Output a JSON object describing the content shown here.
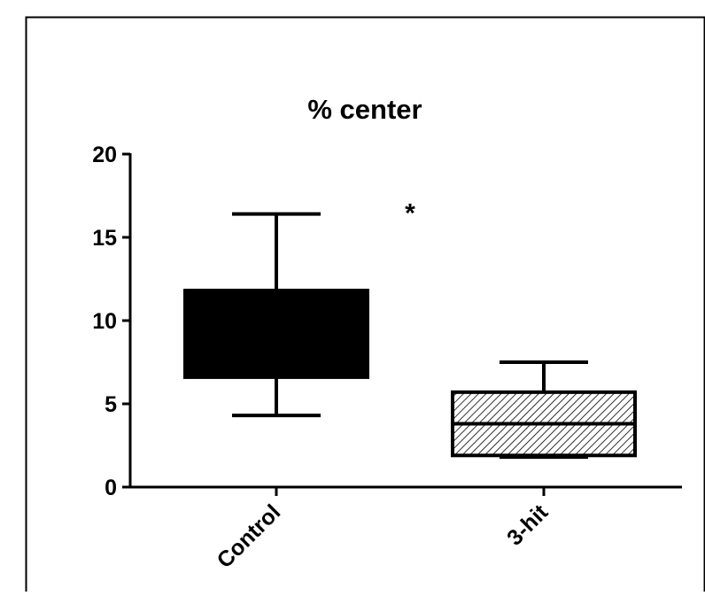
{
  "chart_data": {
    "type": "box",
    "title": "% center",
    "xlabel": "",
    "ylabel": "",
    "ylim": [
      0,
      20
    ],
    "yticks": [
      0,
      5,
      10,
      15,
      20
    ],
    "categories": [
      "Control",
      "3-hit"
    ],
    "boxes": [
      {
        "category": "Control",
        "whisker_low": 4.3,
        "q1": 6.6,
        "median": 11.8,
        "q3": 11.8,
        "whisker_high": 16.4,
        "fill": "solid-black"
      },
      {
        "category": "3-hit",
        "whisker_low": 1.8,
        "q1": 1.9,
        "median": 3.8,
        "q3": 5.7,
        "whisker_high": 7.5,
        "fill": "diagonal-hatch"
      }
    ],
    "annotations": [
      {
        "text": "*",
        "x": 1.5,
        "y": 17.1
      }
    ],
    "colors": {
      "box_solid": "#000000",
      "hatch": "#000000",
      "background": "#ffffff"
    }
  }
}
